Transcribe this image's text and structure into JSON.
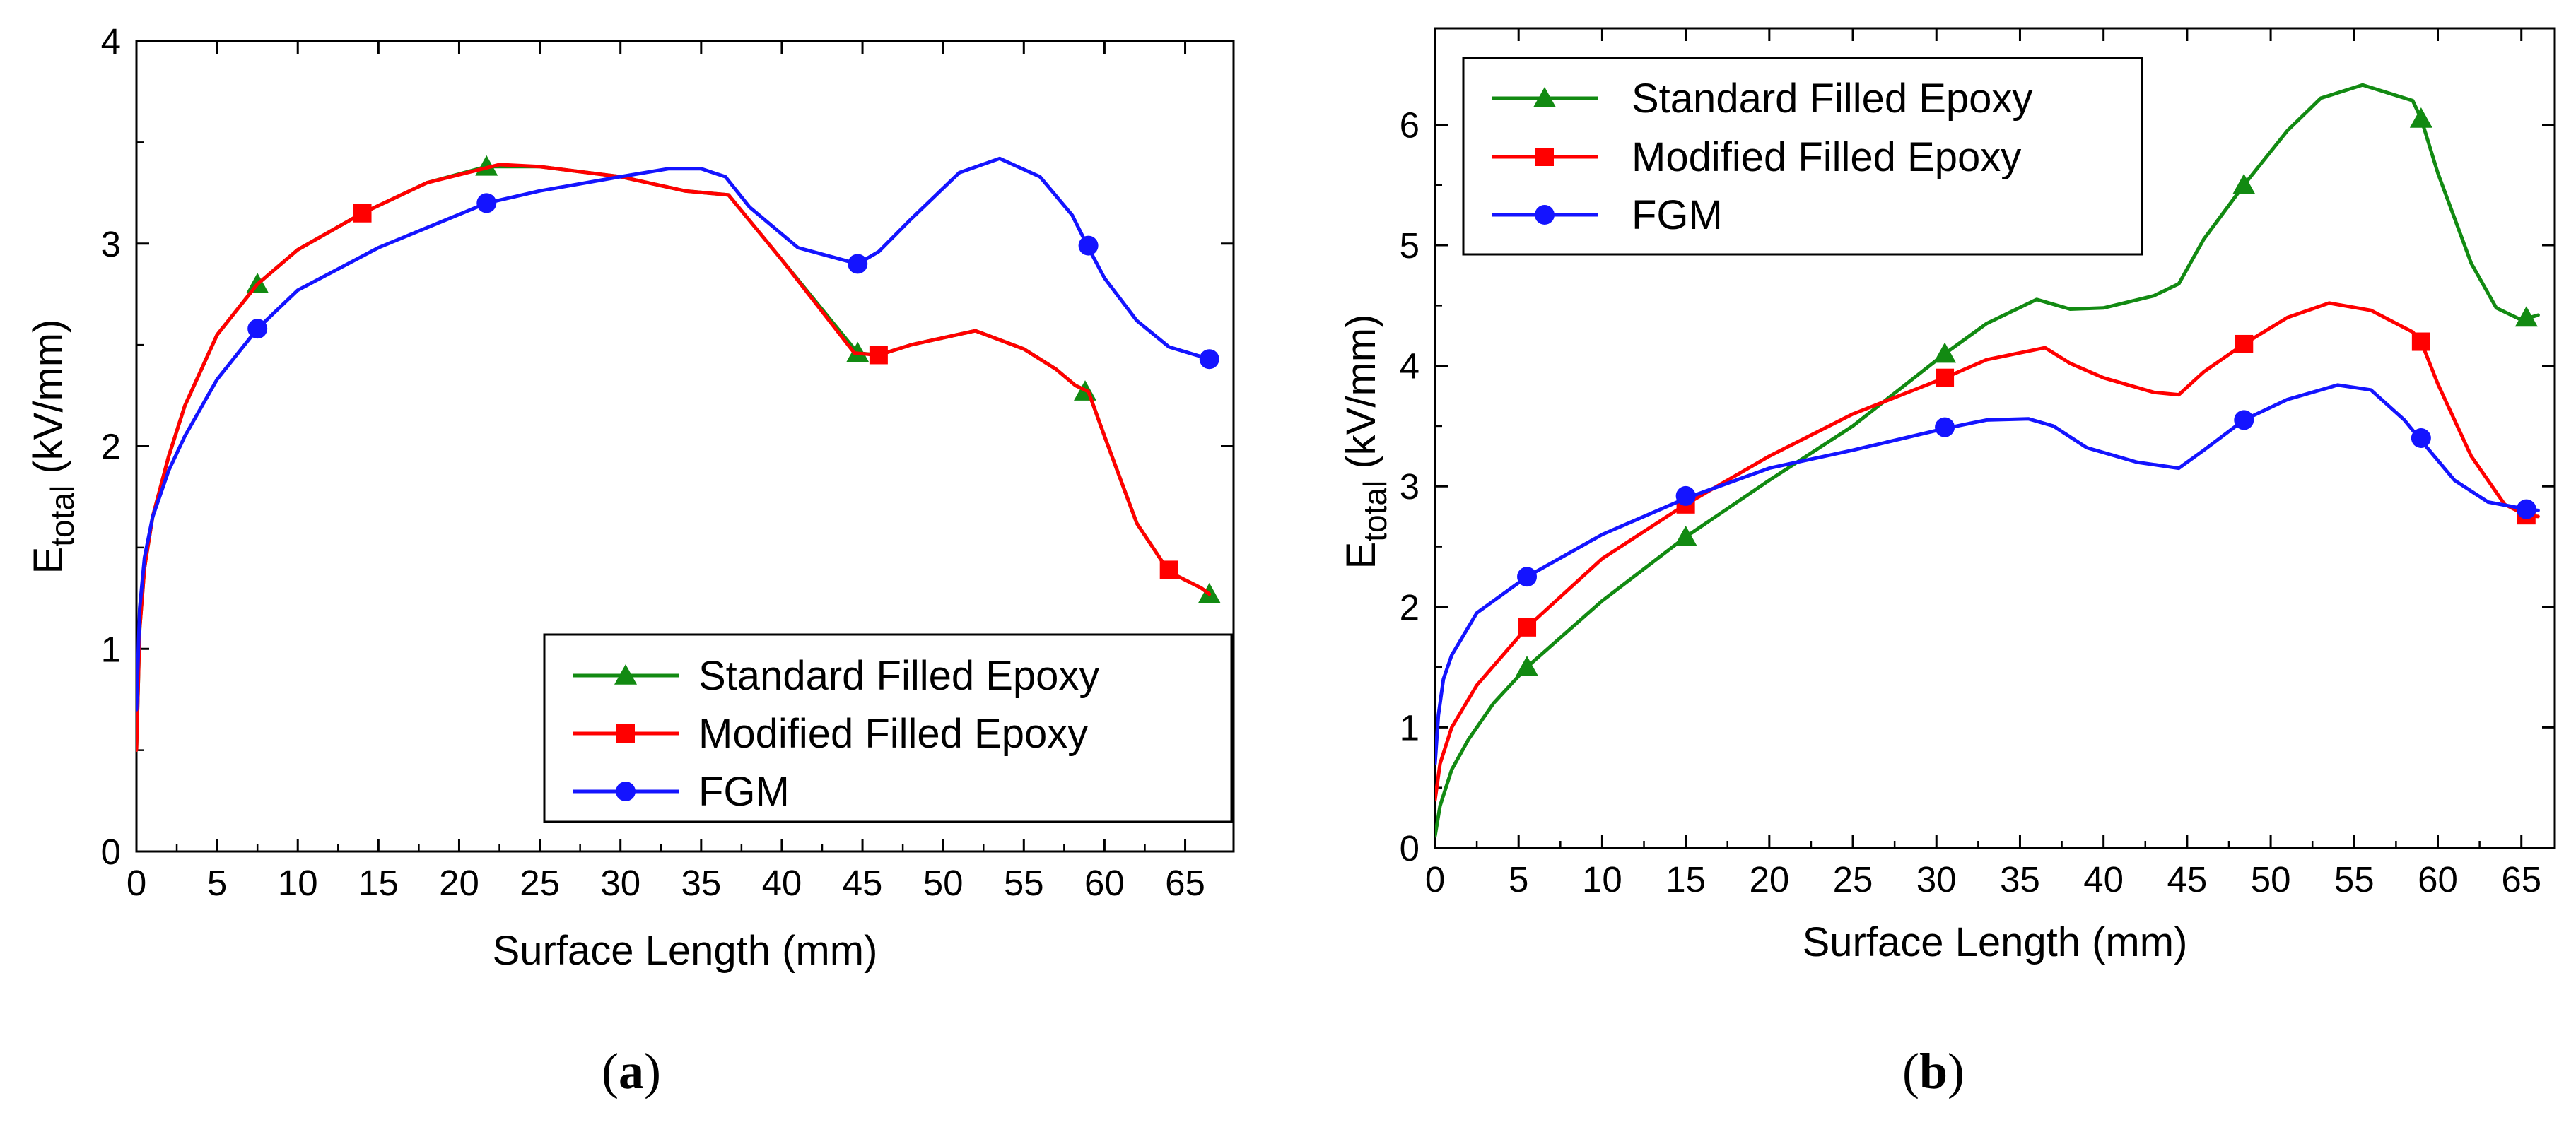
{
  "chart_data": [
    {
      "type": "line",
      "caption": "a",
      "title": "",
      "xlabel": "Surface Length (mm)",
      "ylabel_main": "E",
      "ylabel_sub": "total",
      "ylabel_unit": " (kV/mm)",
      "xlim": [
        0,
        68
      ],
      "ylim": [
        0,
        4
      ],
      "xticks": [
        0,
        5,
        10,
        15,
        20,
        25,
        30,
        35,
        40,
        45,
        50,
        55,
        60,
        65
      ],
      "yticks": [
        0,
        1,
        2,
        3,
        4
      ],
      "legend_position": "bottom-right",
      "series": [
        {
          "name": "Standard Filled Epoxy",
          "color": "#128a12",
          "marker": "triangle",
          "curve": [
            [
              0,
              0.5
            ],
            [
              0.2,
              1.1
            ],
            [
              0.5,
              1.4
            ],
            [
              1,
              1.65
            ],
            [
              2,
              1.95
            ],
            [
              3,
              2.2
            ],
            [
              5,
              2.55
            ],
            [
              7.5,
              2.8
            ],
            [
              10,
              2.97
            ],
            [
              14,
              3.15
            ],
            [
              18,
              3.3
            ],
            [
              21.7,
              3.38
            ],
            [
              25,
              3.38
            ],
            [
              30,
              3.33
            ],
            [
              34,
              3.26
            ],
            [
              36.7,
              3.24
            ],
            [
              40,
              2.92
            ],
            [
              44.7,
              2.46
            ],
            [
              46,
              2.45
            ],
            [
              48,
              2.5
            ],
            [
              52,
              2.57
            ],
            [
              55,
              2.48
            ],
            [
              57,
              2.38
            ],
            [
              58.2,
              2.3
            ],
            [
              59,
              2.27
            ],
            [
              60,
              2.05
            ],
            [
              62,
              1.62
            ],
            [
              64,
              1.38
            ],
            [
              66,
              1.3
            ],
            [
              66.5,
              1.27
            ]
          ],
          "markers": [
            [
              7.5,
              2.8
            ],
            [
              21.7,
              3.38
            ],
            [
              44.7,
              2.46
            ],
            [
              58.8,
              2.27
            ],
            [
              66.5,
              1.27
            ]
          ]
        },
        {
          "name": "Modified Filled Epoxy",
          "color": "#ff0000",
          "marker": "square",
          "curve": [
            [
              0,
              0.5
            ],
            [
              0.2,
              1.1
            ],
            [
              0.5,
              1.4
            ],
            [
              1,
              1.65
            ],
            [
              2,
              1.95
            ],
            [
              3,
              2.2
            ],
            [
              5,
              2.55
            ],
            [
              7.5,
              2.8
            ],
            [
              10,
              2.97
            ],
            [
              14,
              3.15
            ],
            [
              18,
              3.3
            ],
            [
              22.5,
              3.39
            ],
            [
              25,
              3.38
            ],
            [
              30,
              3.33
            ],
            [
              34,
              3.26
            ],
            [
              36.7,
              3.24
            ],
            [
              40,
              2.92
            ],
            [
              44.5,
              2.46
            ],
            [
              46,
              2.45
            ],
            [
              48,
              2.5
            ],
            [
              52,
              2.57
            ],
            [
              55,
              2.48
            ],
            [
              57,
              2.38
            ],
            [
              58.2,
              2.3
            ],
            [
              59,
              2.27
            ],
            [
              60,
              2.05
            ],
            [
              62,
              1.62
            ],
            [
              64,
              1.38
            ],
            [
              66,
              1.3
            ],
            [
              66.5,
              1.27
            ]
          ],
          "markers": [
            [
              14,
              3.15
            ],
            [
              46,
              2.45
            ],
            [
              64,
              1.39
            ]
          ]
        },
        {
          "name": "FGM",
          "color": "#1414ff",
          "marker": "circle",
          "curve": [
            [
              0,
              0.7
            ],
            [
              0.2,
              1.2
            ],
            [
              0.5,
              1.45
            ],
            [
              1,
              1.65
            ],
            [
              2,
              1.88
            ],
            [
              3,
              2.05
            ],
            [
              5,
              2.33
            ],
            [
              7.5,
              2.58
            ],
            [
              10,
              2.77
            ],
            [
              15,
              2.98
            ],
            [
              21.7,
              3.2
            ],
            [
              25,
              3.26
            ],
            [
              30,
              3.33
            ],
            [
              33,
              3.37
            ],
            [
              35,
              3.37
            ],
            [
              36.5,
              3.33
            ],
            [
              38,
              3.18
            ],
            [
              41,
              2.98
            ],
            [
              44.7,
              2.9
            ],
            [
              46,
              2.96
            ],
            [
              48,
              3.12
            ],
            [
              51,
              3.35
            ],
            [
              53.5,
              3.42
            ],
            [
              56,
              3.33
            ],
            [
              58,
              3.14
            ],
            [
              59,
              2.98
            ],
            [
              60,
              2.83
            ],
            [
              62,
              2.62
            ],
            [
              64,
              2.49
            ],
            [
              66.5,
              2.43
            ]
          ],
          "markers": [
            [
              7.5,
              2.58
            ],
            [
              21.7,
              3.2
            ],
            [
              44.7,
              2.9
            ],
            [
              59,
              2.99
            ],
            [
              66.5,
              2.43
            ]
          ]
        }
      ]
    },
    {
      "type": "line",
      "caption": "b",
      "title": "",
      "xlabel": "Surface Length (mm)",
      "ylabel_main": "E",
      "ylabel_sub": "total",
      "ylabel_unit": " (kV/mm)",
      "xlim": [
        0,
        67
      ],
      "ylim": [
        0,
        6.8
      ],
      "xticks": [
        0,
        5,
        10,
        15,
        20,
        25,
        30,
        35,
        40,
        45,
        50,
        55,
        60,
        65
      ],
      "yticks": [
        0,
        1,
        2,
        3,
        4,
        5,
        6
      ],
      "legend_position": "top-left",
      "series": [
        {
          "name": "Standard Filled Epoxy",
          "color": "#128a12",
          "marker": "triangle",
          "curve": [
            [
              0,
              0.1
            ],
            [
              0.3,
              0.35
            ],
            [
              1,
              0.65
            ],
            [
              2,
              0.9
            ],
            [
              3.5,
              1.2
            ],
            [
              5.5,
              1.5
            ],
            [
              10,
              2.05
            ],
            [
              15,
              2.58
            ],
            [
              20,
              3.05
            ],
            [
              25,
              3.5
            ],
            [
              30.5,
              4.1
            ],
            [
              33,
              4.35
            ],
            [
              36,
              4.55
            ],
            [
              38,
              4.47
            ],
            [
              40,
              4.48
            ],
            [
              43,
              4.58
            ],
            [
              44.5,
              4.68
            ],
            [
              46,
              5.05
            ],
            [
              48.4,
              5.5
            ],
            [
              51,
              5.95
            ],
            [
              53,
              6.22
            ],
            [
              55.5,
              6.33
            ],
            [
              58.5,
              6.2
            ],
            [
              59,
              6.05
            ],
            [
              60,
              5.6
            ],
            [
              62,
              4.85
            ],
            [
              63.5,
              4.48
            ],
            [
              65,
              4.38
            ],
            [
              66,
              4.42
            ]
          ],
          "markers": [
            [
              5.5,
              1.5
            ],
            [
              15,
              2.58
            ],
            [
              30.5,
              4.1
            ],
            [
              48.4,
              5.5
            ],
            [
              59,
              6.05
            ],
            [
              65.3,
              4.4
            ]
          ]
        },
        {
          "name": "Modified Filled Epoxy",
          "color": "#ff0000",
          "marker": "square",
          "curve": [
            [
              0,
              0.4
            ],
            [
              0.3,
              0.7
            ],
            [
              1,
              1.0
            ],
            [
              2.5,
              1.35
            ],
            [
              5.5,
              1.83
            ],
            [
              10,
              2.4
            ],
            [
              15,
              2.85
            ],
            [
              20,
              3.25
            ],
            [
              25,
              3.6
            ],
            [
              30.5,
              3.9
            ],
            [
              33,
              4.05
            ],
            [
              36.5,
              4.15
            ],
            [
              38,
              4.02
            ],
            [
              40,
              3.9
            ],
            [
              43,
              3.78
            ],
            [
              44.5,
              3.76
            ],
            [
              46,
              3.95
            ],
            [
              48.4,
              4.18
            ],
            [
              51,
              4.4
            ],
            [
              53.5,
              4.52
            ],
            [
              56,
              4.46
            ],
            [
              58.5,
              4.28
            ],
            [
              59,
              4.2
            ],
            [
              60,
              3.85
            ],
            [
              62,
              3.25
            ],
            [
              64,
              2.85
            ],
            [
              65.3,
              2.76
            ],
            [
              66,
              2.75
            ]
          ],
          "markers": [
            [
              5.5,
              1.83
            ],
            [
              15,
              2.85
            ],
            [
              30.5,
              3.9
            ],
            [
              48.4,
              4.18
            ],
            [
              59,
              4.2
            ],
            [
              65.3,
              2.76
            ]
          ]
        },
        {
          "name": "FGM",
          "color": "#1414ff",
          "marker": "circle",
          "curve": [
            [
              0,
              0.7
            ],
            [
              0.2,
              1.1
            ],
            [
              0.5,
              1.4
            ],
            [
              1,
              1.6
            ],
            [
              2.5,
              1.95
            ],
            [
              5.5,
              2.25
            ],
            [
              10,
              2.6
            ],
            [
              15,
              2.9
            ],
            [
              20,
              3.15
            ],
            [
              25,
              3.3
            ],
            [
              30.5,
              3.48
            ],
            [
              33,
              3.55
            ],
            [
              35.5,
              3.56
            ],
            [
              37,
              3.5
            ],
            [
              39,
              3.32
            ],
            [
              42,
              3.2
            ],
            [
              44.5,
              3.15
            ],
            [
              46,
              3.3
            ],
            [
              48.4,
              3.55
            ],
            [
              51,
              3.72
            ],
            [
              54,
              3.84
            ],
            [
              56,
              3.8
            ],
            [
              58,
              3.55
            ],
            [
              59,
              3.38
            ],
            [
              61,
              3.05
            ],
            [
              63,
              2.87
            ],
            [
              65.3,
              2.81
            ],
            [
              66,
              2.8
            ]
          ],
          "markers": [
            [
              5.5,
              2.25
            ],
            [
              15,
              2.92
            ],
            [
              30.5,
              3.49
            ],
            [
              48.4,
              3.55
            ],
            [
              59,
              3.4
            ],
            [
              65.3,
              2.81
            ]
          ]
        }
      ]
    }
  ]
}
